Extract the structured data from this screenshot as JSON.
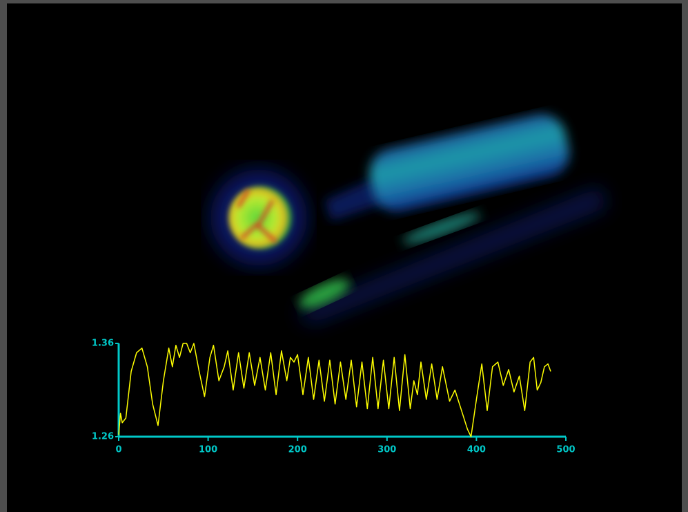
{
  "chart_data": {
    "type": "line",
    "x": [
      0,
      2,
      4,
      8,
      14,
      20,
      26,
      32,
      38,
      44,
      50,
      56,
      60,
      64,
      68,
      72,
      76,
      80,
      84,
      90,
      96,
      102,
      106,
      112,
      118,
      122,
      128,
      134,
      140,
      146,
      152,
      158,
      164,
      170,
      176,
      182,
      188,
      192,
      196,
      200,
      206,
      212,
      218,
      224,
      230,
      236,
      242,
      248,
      254,
      260,
      266,
      272,
      278,
      284,
      290,
      296,
      302,
      308,
      314,
      320,
      326,
      330,
      334,
      338,
      344,
      350,
      356,
      362,
      370,
      376,
      382,
      390,
      394,
      400,
      406,
      412,
      418,
      424,
      430,
      436,
      442,
      448,
      454,
      460,
      464,
      468,
      472,
      476,
      480,
      483
    ],
    "values": [
      1.262,
      1.285,
      1.275,
      1.28,
      1.33,
      1.35,
      1.355,
      1.335,
      1.295,
      1.272,
      1.32,
      1.355,
      1.335,
      1.358,
      1.345,
      1.36,
      1.36,
      1.35,
      1.36,
      1.33,
      1.303,
      1.345,
      1.358,
      1.32,
      1.335,
      1.352,
      1.31,
      1.35,
      1.312,
      1.35,
      1.315,
      1.345,
      1.31,
      1.35,
      1.305,
      1.352,
      1.32,
      1.345,
      1.34,
      1.348,
      1.305,
      1.345,
      1.3,
      1.342,
      1.298,
      1.342,
      1.295,
      1.34,
      1.3,
      1.342,
      1.292,
      1.34,
      1.29,
      1.345,
      1.29,
      1.342,
      1.29,
      1.345,
      1.288,
      1.348,
      1.29,
      1.32,
      1.305,
      1.34,
      1.3,
      1.338,
      1.3,
      1.335,
      1.298,
      1.31,
      1.292,
      1.268,
      1.26,
      1.3,
      1.338,
      1.288,
      1.335,
      1.34,
      1.315,
      1.332,
      1.308,
      1.325,
      1.288,
      1.34,
      1.345,
      1.31,
      1.318,
      1.335,
      1.338,
      1.33
    ],
    "color": "#ffff00",
    "axis_color": "#00c8c8",
    "xlim": [
      0,
      500
    ],
    "xticks": [
      0,
      100,
      200,
      300,
      400,
      500
    ],
    "ylim": [
      1.26,
      1.36
    ],
    "yticks": [
      1.26,
      1.36
    ]
  }
}
